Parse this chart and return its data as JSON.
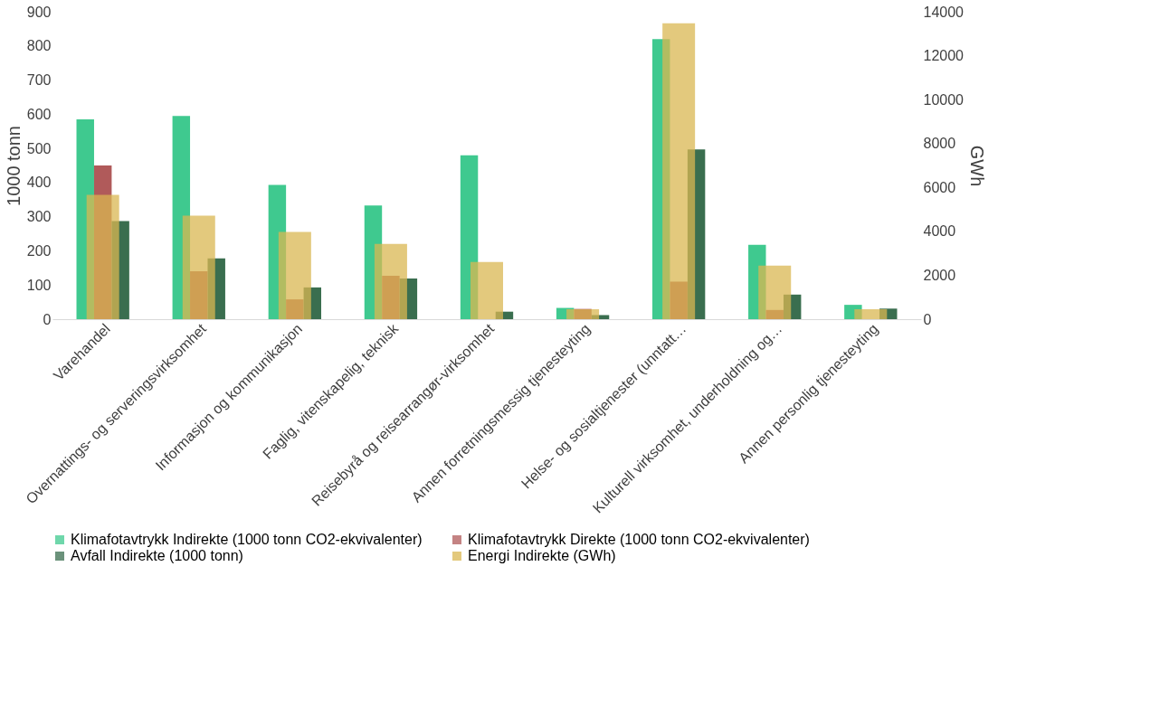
{
  "chart_data": {
    "type": "bar",
    "categories": [
      "Varehandel",
      "Overnattings- og serveringsvirksomhet",
      "Informasjon og kommunikasjon",
      "Faglig, vitenskapelig, teknisk",
      "Reisebyrå og reisearrangør-virksomhet",
      "Annen forretningsmessig tjenesteyting",
      "Helse- og sosialtjenester (unntatt…",
      "Kulturell virksomhet, underholdning og…",
      "Annen personlig tjenesteyting"
    ],
    "series": [
      {
        "name": "Klimafotavtrykk Indirekte (1000 tonn CO2-ekvivalenter)",
        "color": "#3fc98f",
        "values": [
          585,
          595,
          393,
          333,
          480,
          33,
          820,
          218,
          42
        ]
      },
      {
        "name": "Klimafotavtrykk Direkte (1000 tonn CO2-ekvivalenter)",
        "color": "#b05a5a",
        "values": [
          450,
          140,
          58,
          127,
          null,
          30,
          110,
          27,
          null
        ]
      },
      {
        "name": "Avfall Indirekte (1000 tonn)",
        "color": "#3a6e4f",
        "values": [
          287,
          178,
          93,
          119,
          22,
          12,
          497,
          72,
          31
        ]
      },
      {
        "name": "Energi  Indirekte (GWh)",
        "color": "#d9b752",
        "axis": "y2",
        "values": [
          5660,
          4710,
          3970,
          3430,
          2600,
          450,
          13470,
          2440,
          450
        ]
      }
    ],
    "ylabel": "1000 tonn",
    "y2label": "GWh",
    "ylim": [
      0,
      900
    ],
    "yticks": [
      0,
      100,
      200,
      300,
      400,
      500,
      600,
      700,
      800,
      900
    ],
    "y2lim": [
      0,
      14000
    ],
    "y2ticks": [
      0,
      2000,
      4000,
      6000,
      8000,
      10000,
      12000,
      14000
    ],
    "legend": "bottom",
    "grid": false
  }
}
